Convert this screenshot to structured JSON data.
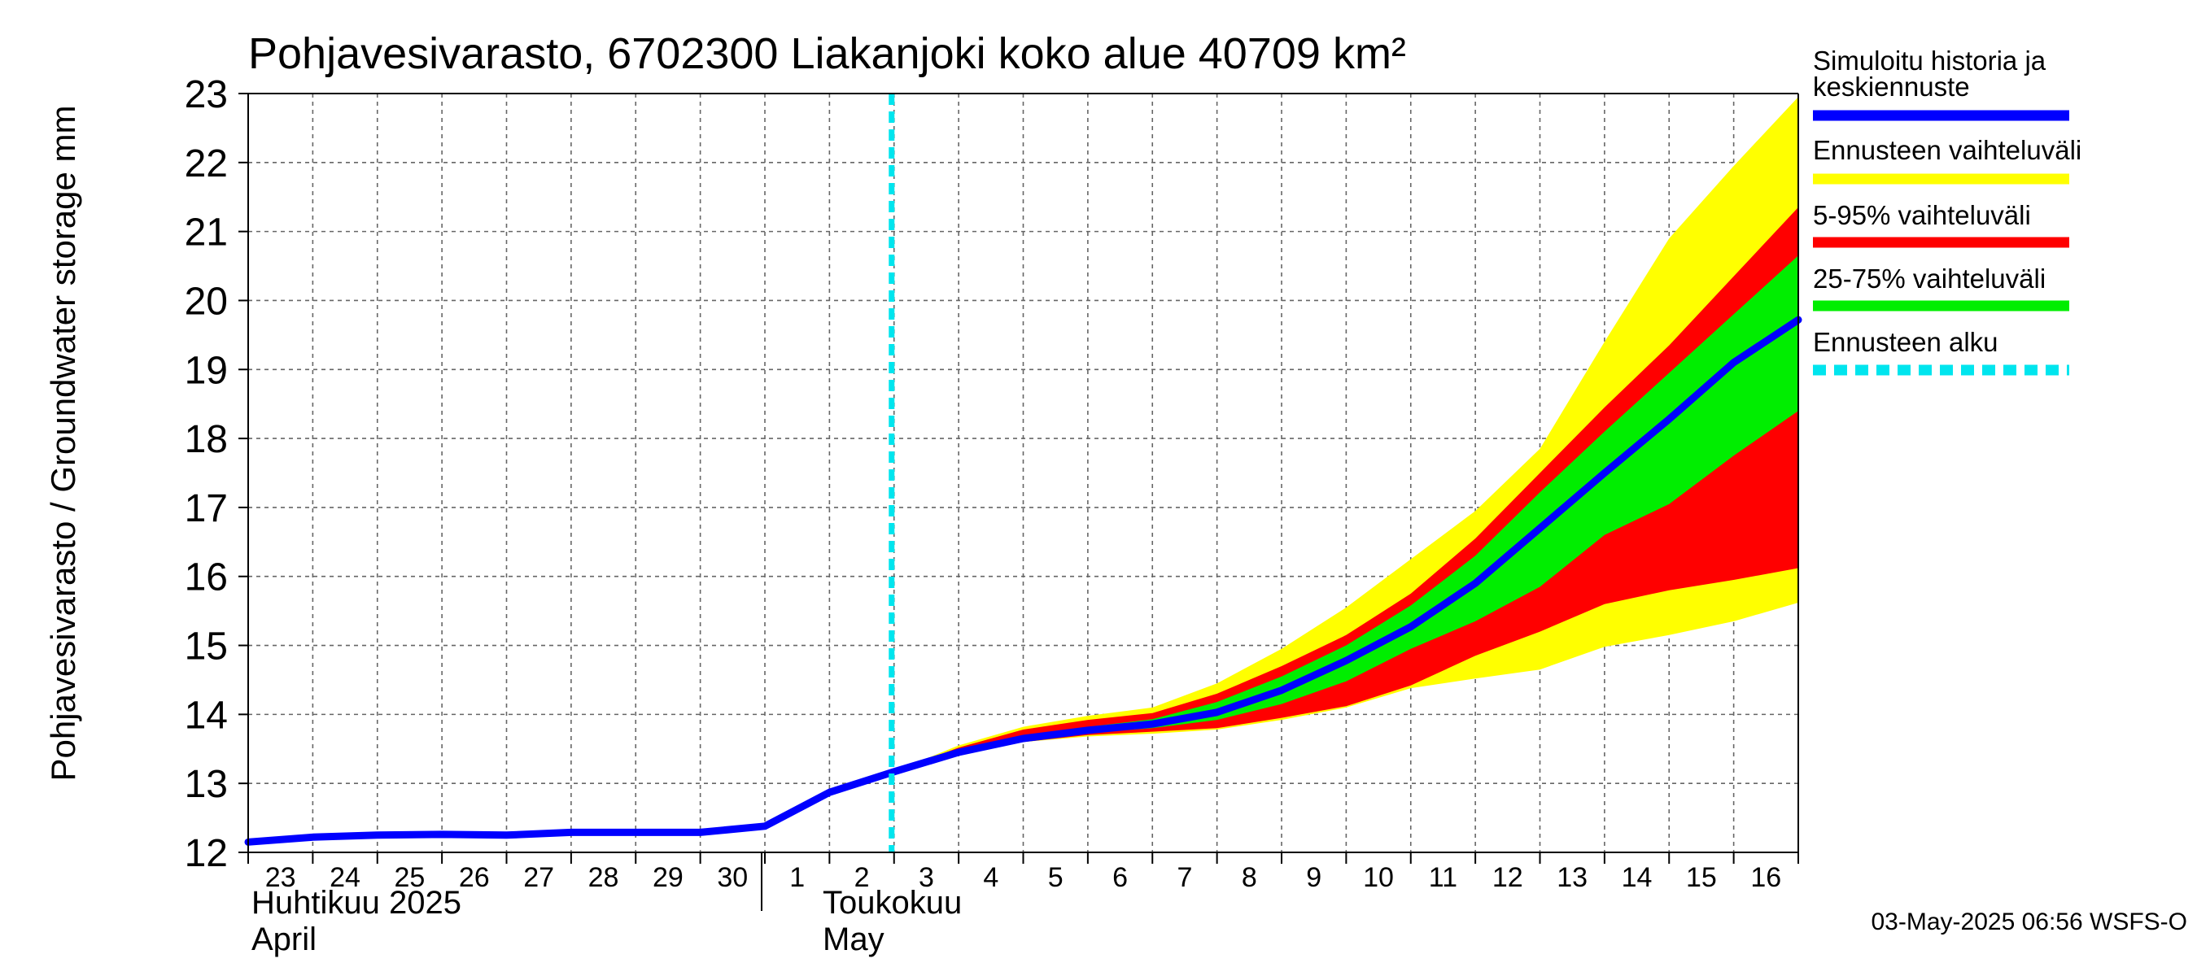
{
  "chart_data": {
    "type": "area",
    "title": "Pohjavesivarasto, 6702300 Liakanjoki koko alue 40709 km²",
    "ylabel": "Pohjavesivarasto / Groundwater storage   mm",
    "ylim": [
      12,
      23
    ],
    "yticks": [
      12,
      13,
      14,
      15,
      16,
      17,
      18,
      19,
      20,
      21,
      22,
      23
    ],
    "xlim": [
      "2025-04-23",
      "2025-05-17"
    ],
    "x_tick_labels": [
      "23",
      "24",
      "25",
      "26",
      "27",
      "28",
      "29",
      "30",
      "1",
      "2",
      "3",
      "4",
      "5",
      "6",
      "7",
      "8",
      "9",
      "10",
      "11",
      "12",
      "13",
      "14",
      "15",
      "16"
    ],
    "month_labels": [
      {
        "line1": "Huhtikuu  2025",
        "line2": "April"
      },
      {
        "line1": "Toukokuu",
        "line2": "May"
      }
    ],
    "grid": true,
    "legend_position": "right",
    "forecast_start": "2025-05-03",
    "series": [
      {
        "name": "Simuloitu historia ja keskiennuste",
        "color": "#0000ff",
        "x": [
          "2025-04-23",
          "2025-04-24",
          "2025-04-25",
          "2025-04-26",
          "2025-04-27",
          "2025-04-28",
          "2025-04-29",
          "2025-04-30",
          "2025-05-01",
          "2025-05-02",
          "2025-05-03",
          "2025-05-04",
          "2025-05-05",
          "2025-05-06",
          "2025-05-07",
          "2025-05-08",
          "2025-05-09",
          "2025-05-10",
          "2025-05-11",
          "2025-05-12",
          "2025-05-13",
          "2025-05-14",
          "2025-05-15",
          "2025-05-16",
          "2025-05-17"
        ],
        "values": [
          12.15,
          12.22,
          12.25,
          12.26,
          12.25,
          12.29,
          12.29,
          12.29,
          12.38,
          12.87,
          13.17,
          13.45,
          13.65,
          13.77,
          13.86,
          14.03,
          14.35,
          14.78,
          15.27,
          15.9,
          16.7,
          17.5,
          18.28,
          19.1,
          19.72
        ]
      }
    ],
    "bands": [
      {
        "name": "Ennusteen vaihteluväli",
        "color": "#ffff00",
        "x": [
          "2025-05-03",
          "2025-05-04",
          "2025-05-05",
          "2025-05-06",
          "2025-05-07",
          "2025-05-08",
          "2025-05-09",
          "2025-05-10",
          "2025-05-11",
          "2025-05-12",
          "2025-05-13",
          "2025-05-14",
          "2025-05-15",
          "2025-05-16",
          "2025-05-17"
        ],
        "low": [
          13.17,
          13.4,
          13.6,
          13.68,
          13.72,
          13.78,
          13.92,
          14.1,
          14.38,
          14.52,
          14.65,
          14.98,
          15.15,
          15.35,
          15.62
        ],
        "high": [
          13.17,
          13.55,
          13.82,
          13.98,
          14.1,
          14.45,
          14.95,
          15.55,
          16.25,
          16.95,
          17.85,
          19.4,
          20.9,
          21.95,
          22.95
        ]
      },
      {
        "name": "5-95% vaihteluväli",
        "color": "#ff0000",
        "x": [
          "2025-05-03",
          "2025-05-04",
          "2025-05-05",
          "2025-05-06",
          "2025-05-07",
          "2025-05-08",
          "2025-05-09",
          "2025-05-10",
          "2025-05-11",
          "2025-05-12",
          "2025-05-13",
          "2025-05-14",
          "2025-05-15",
          "2025-05-16",
          "2025-05-17"
        ],
        "low": [
          13.17,
          13.42,
          13.6,
          13.7,
          13.75,
          13.8,
          13.95,
          14.12,
          14.42,
          14.85,
          15.2,
          15.6,
          15.8,
          15.95,
          16.12
        ],
        "high": [
          13.17,
          13.52,
          13.78,
          13.92,
          14.02,
          14.3,
          14.7,
          15.15,
          15.75,
          16.55,
          17.5,
          18.45,
          19.35,
          20.35,
          21.35
        ]
      },
      {
        "name": "25-75% vaihteluväli",
        "color": "#00ee00",
        "x": [
          "2025-05-03",
          "2025-05-04",
          "2025-05-05",
          "2025-05-06",
          "2025-05-07",
          "2025-05-08",
          "2025-05-09",
          "2025-05-10",
          "2025-05-11",
          "2025-05-12",
          "2025-05-13",
          "2025-05-14",
          "2025-05-15",
          "2025-05-16",
          "2025-05-17"
        ],
        "low": [
          13.17,
          13.44,
          13.64,
          13.73,
          13.8,
          13.92,
          14.15,
          14.48,
          14.95,
          15.35,
          15.85,
          16.6,
          17.05,
          17.75,
          18.4
        ],
        "high": [
          13.17,
          13.48,
          13.7,
          13.82,
          13.93,
          14.18,
          14.55,
          15.0,
          15.58,
          16.3,
          17.22,
          18.1,
          18.95,
          19.8,
          20.65
        ]
      }
    ],
    "legend": [
      {
        "label": "Simuloitu historia ja keskiennuste",
        "color": "#0000ff",
        "style": "solid"
      },
      {
        "label": "Ennusteen vaihteluväli",
        "color": "#ffff00",
        "style": "solid"
      },
      {
        "label": "5-95% vaihteluväli",
        "color": "#ff0000",
        "style": "solid"
      },
      {
        "label": "25-75% vaihteluväli",
        "color": "#00ee00",
        "style": "solid"
      },
      {
        "label": "Ennusteen alku",
        "color": "#00e5ee",
        "style": "dashed"
      }
    ],
    "footer": "03-May-2025 06:56 WSFS-O"
  }
}
